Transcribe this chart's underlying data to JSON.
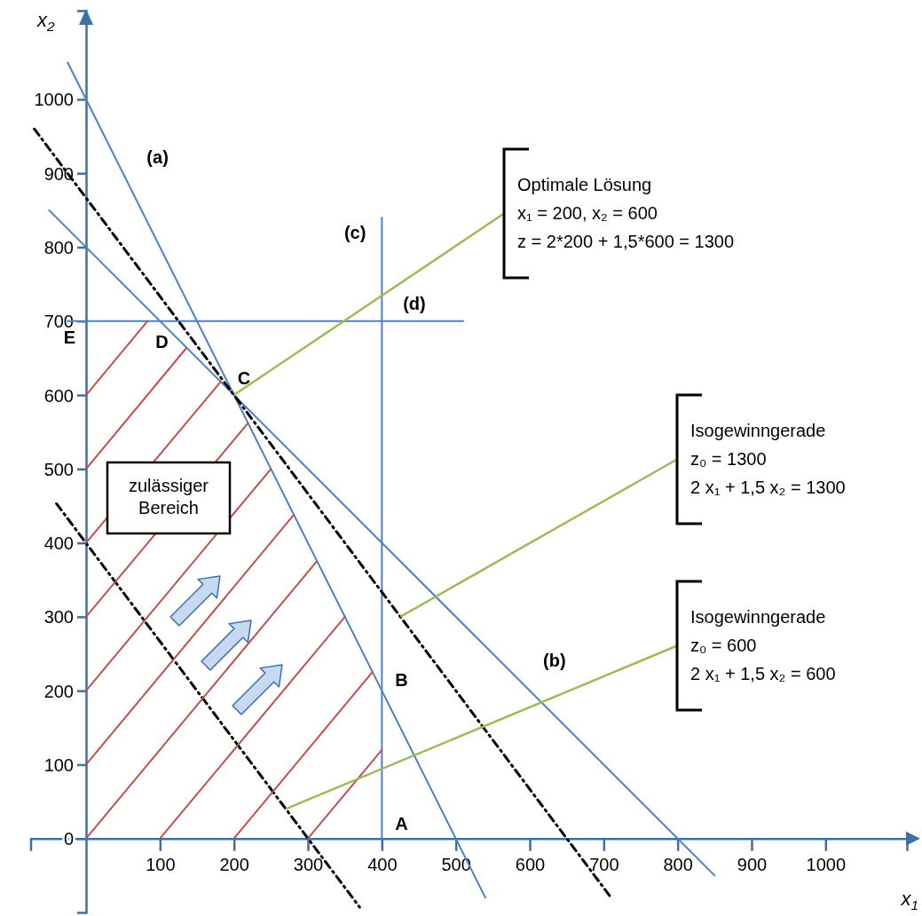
{
  "chart_data": {
    "type": "line",
    "xlabel": "x$_{1}$",
    "ylabel": "x$_{2}$",
    "xlim": [
      -75,
      1110
    ],
    "ylim": [
      -100,
      1120
    ],
    "xticks": [
      100,
      200,
      300,
      400,
      500,
      600,
      700,
      800,
      900,
      1000
    ],
    "yticks": [
      0,
      100,
      200,
      300,
      400,
      500,
      600,
      700,
      800,
      900,
      1000
    ],
    "series": [
      {
        "name": "(a)",
        "color": "#4f81bd",
        "x": [
          -25,
          540
        ],
        "values": [
          1050,
          -80
        ]
      },
      {
        "name": "(b)",
        "color": "#4f81bd",
        "x": [
          -50,
          850
        ],
        "values": [
          850,
          -50
        ]
      },
      {
        "name": "(c)",
        "color": "#4f81bd",
        "x": [
          400,
          400
        ],
        "values": [
          0,
          840
        ]
      },
      {
        "name": "(d)",
        "color": "#4f81bd",
        "x": [
          -25,
          510
        ],
        "values": [
          700,
          700
        ]
      },
      {
        "color": "#000000",
        "line_style": "dashed",
        "x": [
          -70,
          710
        ],
        "values": [
          960,
          -80
        ]
      },
      {
        "color": "#000000",
        "line_style": "dashed",
        "x": [
          -40,
          370
        ],
        "values": [
          453,
          -93
        ]
      },
      {
        "color": "#c0504d",
        "x": [
          0,
          83
        ],
        "values": [
          600,
          700
        ]
      },
      {
        "color": "#c0504d",
        "x": [
          0,
          136
        ],
        "values": [
          500,
          664
        ]
      },
      {
        "color": "#c0504d",
        "x": [
          0,
          182
        ],
        "values": [
          400,
          618
        ]
      },
      {
        "color": "#c0504d",
        "x": [
          0,
          219
        ],
        "values": [
          300,
          562
        ]
      },
      {
        "color": "#c0504d",
        "x": [
          0,
          250
        ],
        "values": [
          200,
          500
        ]
      },
      {
        "color": "#c0504d",
        "x": [
          0,
          281
        ],
        "values": [
          100,
          438
        ]
      },
      {
        "color": "#c0504d",
        "x": [
          0,
          312
        ],
        "values": [
          0,
          375
        ]
      },
      {
        "color": "#c0504d",
        "x": [
          100,
          350
        ],
        "values": [
          0,
          300
        ]
      },
      {
        "color": "#c0504d",
        "x": [
          200,
          387
        ],
        "values": [
          0,
          225
        ]
      },
      {
        "color": "#c0504d",
        "x": [
          300,
          400
        ],
        "values": [
          0,
          120
        ]
      }
    ],
    "annotations": [
      {
        "text": "Optimale Lösung\nx₁ = 200, x₂ = 600\nz = 2*200 + 1,5*600 = 1300",
        "x": 200,
        "y": 600
      },
      {
        "text": "Isogewinngerade\nz₀ = 1300\n2 x₁ + 1,5 x₂ = 1300",
        "x": 425,
        "y": 300
      },
      {
        "text": "Isogewinngerade\nz₀ = 600\n2 x₁ + 1,5 x₂ = 600",
        "x": 270,
        "y": 40
      },
      "zulässiger\nBereich",
      {
        "text": "A",
        "x": 400,
        "y": 0
      },
      {
        "text": "B",
        "x": 400,
        "y": 200
      },
      {
        "text": "C",
        "x": 200,
        "y": 600
      },
      {
        "text": "D",
        "x": 100,
        "y": 700
      },
      {
        "text": "E",
        "x": 0,
        "y": 700
      }
    ]
  }
}
